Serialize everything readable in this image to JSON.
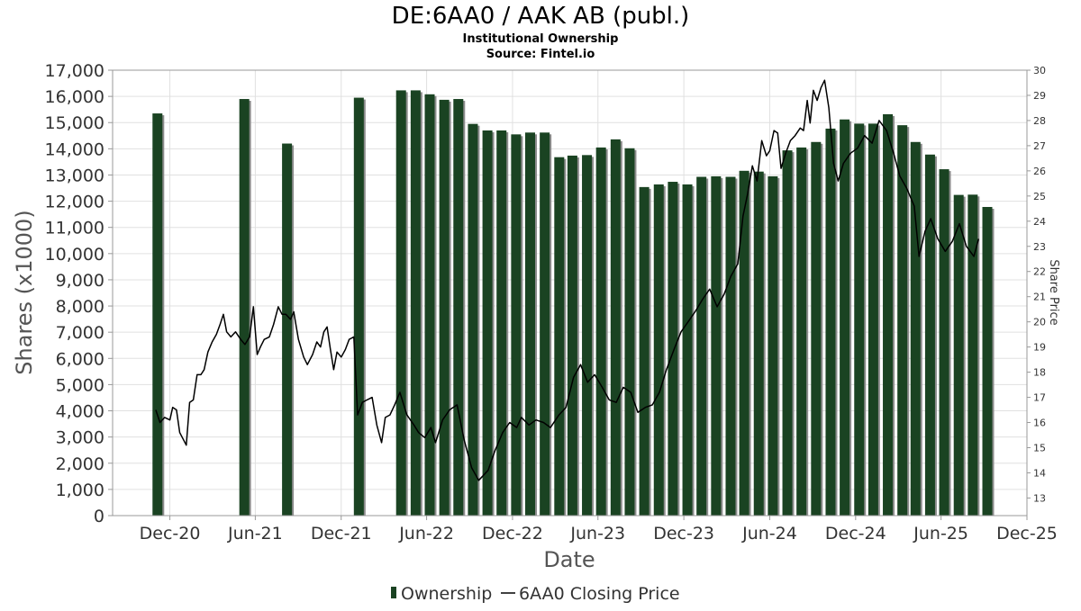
{
  "chart_data": {
    "type": "bar",
    "title": "DE:6AA0 / AAK AB (publ.)",
    "subtitle": "Institutional Ownership",
    "source": "Source: Fintel.io",
    "xlabel": "Date",
    "ylabel": "Shares (x1000)",
    "y2label": "Share Price",
    "ylim": [
      0,
      17000
    ],
    "y2lim": [
      12.3,
      30
    ],
    "grid": true,
    "legend_position": "bottom-center",
    "colors": {
      "bar": "#1a4322",
      "bar_shadow": "#8c8c8c",
      "line": "#000000",
      "grid": "#e0e0e0"
    },
    "x_ticks": [
      "Dec-20",
      "Jun-21",
      "Dec-21",
      "Jun-22",
      "Dec-22",
      "Jun-23",
      "Dec-23",
      "Jun-24",
      "Dec-24",
      "Jun-25",
      "Dec-25"
    ],
    "x_tick_dates": [
      "2020-12-01",
      "2021-06-01",
      "2021-12-01",
      "2022-06-01",
      "2022-12-01",
      "2023-06-01",
      "2023-12-01",
      "2024-06-01",
      "2024-12-01",
      "2025-06-01",
      "2025-12-01"
    ],
    "x_range": [
      "2020-08-01",
      "2025-12-01"
    ],
    "y_ticks": [
      "0",
      "1,000",
      "2,000",
      "3,000",
      "4,000",
      "5,000",
      "6,000",
      "7,000",
      "8,000",
      "9,000",
      "10,000",
      "11,000",
      "12,000",
      "13,000",
      "14,000",
      "15,000",
      "16,000",
      "17,000"
    ],
    "y2_ticks": [
      "13",
      "14",
      "15",
      "16",
      "17",
      "18",
      "19",
      "20",
      "21",
      "22",
      "23",
      "24",
      "25",
      "26",
      "27",
      "28",
      "29",
      "30"
    ],
    "series": [
      {
        "name": "Ownership",
        "type": "bar",
        "points": [
          [
            "2020-10-25",
            15350
          ],
          [
            "2021-04-28",
            15900
          ],
          [
            "2021-07-28",
            14200
          ],
          [
            "2021-12-28",
            15950
          ],
          [
            "2022-03-28",
            16230
          ],
          [
            "2022-04-28",
            16230
          ],
          [
            "2022-05-28",
            16080
          ],
          [
            "2022-06-28",
            15870
          ],
          [
            "2022-07-28",
            15900
          ],
          [
            "2022-08-28",
            14950
          ],
          [
            "2022-09-28",
            14700
          ],
          [
            "2022-10-28",
            14700
          ],
          [
            "2022-11-28",
            14550
          ],
          [
            "2022-12-28",
            14620
          ],
          [
            "2023-01-28",
            14620
          ],
          [
            "2023-02-28",
            13680
          ],
          [
            "2023-03-28",
            13740
          ],
          [
            "2023-04-28",
            13760
          ],
          [
            "2023-05-28",
            14050
          ],
          [
            "2023-06-28",
            14360
          ],
          [
            "2023-07-28",
            14020
          ],
          [
            "2023-08-28",
            12540
          ],
          [
            "2023-09-28",
            12640
          ],
          [
            "2023-10-28",
            12740
          ],
          [
            "2023-11-28",
            12640
          ],
          [
            "2023-12-28",
            12930
          ],
          [
            "2024-01-28",
            12950
          ],
          [
            "2024-02-28",
            12930
          ],
          [
            "2024-03-28",
            13160
          ],
          [
            "2024-04-28",
            13130
          ],
          [
            "2024-05-28",
            12950
          ],
          [
            "2024-06-28",
            13940
          ],
          [
            "2024-07-28",
            14050
          ],
          [
            "2024-08-28",
            14260
          ],
          [
            "2024-09-28",
            14770
          ],
          [
            "2024-10-28",
            15120
          ],
          [
            "2024-11-28",
            14960
          ],
          [
            "2024-12-28",
            14960
          ],
          [
            "2025-01-28",
            15320
          ],
          [
            "2025-02-28",
            14900
          ],
          [
            "2025-03-28",
            14260
          ],
          [
            "2025-04-28",
            13780
          ],
          [
            "2025-05-28",
            13220
          ],
          [
            "2025-06-28",
            12240
          ],
          [
            "2025-07-28",
            12250
          ],
          [
            "2025-08-28",
            11780
          ]
        ]
      },
      {
        "name": "6AA0 Closing Price",
        "type": "line",
        "axis": "right",
        "points": [
          [
            "2020-11-01",
            16.5
          ],
          [
            "2020-11-10",
            16.0
          ],
          [
            "2020-11-20",
            16.2
          ],
          [
            "2020-12-01",
            16.1
          ],
          [
            "2020-12-07",
            16.6
          ],
          [
            "2020-12-15",
            16.5
          ],
          [
            "2020-12-22",
            15.6
          ],
          [
            "2021-01-05",
            15.1
          ],
          [
            "2021-01-12",
            16.8
          ],
          [
            "2021-01-20",
            16.9
          ],
          [
            "2021-01-28",
            17.9
          ],
          [
            "2021-02-05",
            17.9
          ],
          [
            "2021-02-12",
            18.1
          ],
          [
            "2021-02-20",
            18.8
          ],
          [
            "2021-03-01",
            19.2
          ],
          [
            "2021-03-10",
            19.5
          ],
          [
            "2021-03-18",
            19.9
          ],
          [
            "2021-03-25",
            20.3
          ],
          [
            "2021-04-01",
            19.6
          ],
          [
            "2021-04-10",
            19.4
          ],
          [
            "2021-04-20",
            19.6
          ],
          [
            "2021-05-01",
            19.3
          ],
          [
            "2021-05-10",
            19.1
          ],
          [
            "2021-05-20",
            19.4
          ],
          [
            "2021-05-28",
            20.6
          ],
          [
            "2021-06-05",
            18.7
          ],
          [
            "2021-06-12",
            19.0
          ],
          [
            "2021-06-20",
            19.3
          ],
          [
            "2021-07-01",
            19.4
          ],
          [
            "2021-07-10",
            19.9
          ],
          [
            "2021-07-20",
            20.6
          ],
          [
            "2021-07-28",
            20.3
          ],
          [
            "2021-08-05",
            20.3
          ],
          [
            "2021-08-15",
            20.1
          ],
          [
            "2021-08-22",
            20.4
          ],
          [
            "2021-09-01",
            19.3
          ],
          [
            "2021-09-12",
            18.6
          ],
          [
            "2021-09-20",
            18.3
          ],
          [
            "2021-10-01",
            18.7
          ],
          [
            "2021-10-10",
            19.2
          ],
          [
            "2021-10-18",
            19.0
          ],
          [
            "2021-10-25",
            19.6
          ],
          [
            "2021-11-01",
            19.8
          ],
          [
            "2021-11-08",
            18.9
          ],
          [
            "2021-11-15",
            18.1
          ],
          [
            "2021-11-22",
            18.8
          ],
          [
            "2021-12-01",
            18.6
          ],
          [
            "2021-12-10",
            18.9
          ],
          [
            "2021-12-18",
            19.3
          ],
          [
            "2021-12-28",
            19.4
          ],
          [
            "2022-01-05",
            16.3
          ],
          [
            "2022-01-15",
            16.8
          ],
          [
            "2022-01-25",
            16.9
          ],
          [
            "2022-02-05",
            17.0
          ],
          [
            "2022-02-15",
            15.9
          ],
          [
            "2022-02-25",
            15.2
          ],
          [
            "2022-03-05",
            16.2
          ],
          [
            "2022-03-15",
            16.3
          ],
          [
            "2022-03-25",
            16.7
          ],
          [
            "2022-04-05",
            17.2
          ],
          [
            "2022-04-20",
            16.3
          ],
          [
            "2022-05-05",
            15.9
          ],
          [
            "2022-05-15",
            15.6
          ],
          [
            "2022-05-28",
            15.4
          ],
          [
            "2022-06-10",
            15.8
          ],
          [
            "2022-06-20",
            15.2
          ],
          [
            "2022-07-05",
            16.1
          ],
          [
            "2022-07-20",
            16.5
          ],
          [
            "2022-08-05",
            16.7
          ],
          [
            "2022-08-20",
            15.3
          ],
          [
            "2022-09-05",
            14.2
          ],
          [
            "2022-09-20",
            13.7
          ],
          [
            "2022-10-10",
            14.1
          ],
          [
            "2022-10-25",
            14.9
          ],
          [
            "2022-11-10",
            15.6
          ],
          [
            "2022-11-25",
            16.0
          ],
          [
            "2022-12-10",
            15.8
          ],
          [
            "2022-12-20",
            16.2
          ],
          [
            "2023-01-05",
            15.9
          ],
          [
            "2023-01-20",
            16.1
          ],
          [
            "2023-02-05",
            16.0
          ],
          [
            "2023-02-20",
            15.8
          ],
          [
            "2023-03-10",
            16.3
          ],
          [
            "2023-03-25",
            16.6
          ],
          [
            "2023-04-10",
            17.8
          ],
          [
            "2023-04-25",
            18.3
          ],
          [
            "2023-05-10",
            17.6
          ],
          [
            "2023-05-25",
            17.9
          ],
          [
            "2023-06-10",
            17.4
          ],
          [
            "2023-06-25",
            16.9
          ],
          [
            "2023-07-10",
            16.8
          ],
          [
            "2023-07-25",
            17.4
          ],
          [
            "2023-08-10",
            17.2
          ],
          [
            "2023-08-25",
            16.4
          ],
          [
            "2023-09-10",
            16.6
          ],
          [
            "2023-09-25",
            16.7
          ],
          [
            "2023-10-10",
            17.2
          ],
          [
            "2023-10-25",
            18.1
          ],
          [
            "2023-11-10",
            18.9
          ],
          [
            "2023-11-25",
            19.6
          ],
          [
            "2023-12-10",
            20.0
          ],
          [
            "2023-12-25",
            20.4
          ],
          [
            "2024-01-10",
            20.9
          ],
          [
            "2024-01-25",
            21.3
          ],
          [
            "2024-02-10",
            20.6
          ],
          [
            "2024-02-25",
            21.1
          ],
          [
            "2024-03-10",
            21.8
          ],
          [
            "2024-03-25",
            22.3
          ],
          [
            "2024-04-05",
            24.2
          ],
          [
            "2024-04-15",
            25.1
          ],
          [
            "2024-04-25",
            26.2
          ],
          [
            "2024-05-05",
            25.6
          ],
          [
            "2024-05-15",
            27.2
          ],
          [
            "2024-05-25",
            26.6
          ],
          [
            "2024-06-01",
            26.8
          ],
          [
            "2024-06-10",
            27.6
          ],
          [
            "2024-06-18",
            27.5
          ],
          [
            "2024-06-25",
            26.1
          ],
          [
            "2024-07-05",
            26.7
          ],
          [
            "2024-07-15",
            27.2
          ],
          [
            "2024-07-25",
            27.4
          ],
          [
            "2024-08-05",
            27.7
          ],
          [
            "2024-08-12",
            27.6
          ],
          [
            "2024-08-20",
            28.8
          ],
          [
            "2024-08-26",
            27.9
          ],
          [
            "2024-09-02",
            29.2
          ],
          [
            "2024-09-10",
            28.8
          ],
          [
            "2024-09-18",
            29.3
          ],
          [
            "2024-09-26",
            29.6
          ],
          [
            "2024-10-05",
            28.5
          ],
          [
            "2024-10-15",
            26.3
          ],
          [
            "2024-10-25",
            25.6
          ],
          [
            "2024-11-05",
            26.3
          ],
          [
            "2024-11-20",
            26.7
          ],
          [
            "2024-12-05",
            26.9
          ],
          [
            "2024-12-20",
            27.4
          ],
          [
            "2025-01-05",
            27.1
          ],
          [
            "2025-01-20",
            28.0
          ],
          [
            "2025-02-05",
            27.6
          ],
          [
            "2025-02-20",
            26.7
          ],
          [
            "2025-03-05",
            25.8
          ],
          [
            "2025-03-20",
            25.3
          ],
          [
            "2025-04-05",
            24.6
          ],
          [
            "2025-04-15",
            22.6
          ],
          [
            "2025-04-28",
            23.6
          ],
          [
            "2025-05-10",
            24.1
          ],
          [
            "2025-05-25",
            23.3
          ],
          [
            "2025-06-10",
            22.8
          ],
          [
            "2025-06-25",
            23.2
          ],
          [
            "2025-07-10",
            23.9
          ],
          [
            "2025-07-25",
            23.0
          ],
          [
            "2025-08-10",
            22.6
          ],
          [
            "2025-08-20",
            23.3
          ]
        ]
      }
    ]
  }
}
